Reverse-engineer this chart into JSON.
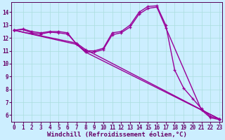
{
  "xlabel": "Windchill (Refroidissement éolien,°C)",
  "bg_color": "#cceeff",
  "line_color": "#990099",
  "grid_color": "#aadddd",
  "axis_color": "#550055",
  "xlim": [
    -0.3,
    23.3
  ],
  "ylim": [
    5.5,
    14.8
  ],
  "xticks": [
    0,
    1,
    2,
    3,
    4,
    5,
    6,
    7,
    8,
    9,
    10,
    11,
    12,
    13,
    14,
    15,
    16,
    17,
    18,
    19,
    20,
    21,
    22,
    23
  ],
  "yticks": [
    6,
    7,
    8,
    9,
    10,
    11,
    12,
    13,
    14
  ],
  "series": [
    {
      "x": [
        0,
        1,
        2,
        3,
        4,
        5,
        6,
        7,
        8,
        9,
        10,
        11,
        12,
        13,
        14,
        15,
        16,
        17,
        18,
        19,
        20,
        21,
        22,
        23
      ],
      "y": [
        12.6,
        12.7,
        12.5,
        12.4,
        12.5,
        12.5,
        12.4,
        11.5,
        11.0,
        11.0,
        11.2,
        12.4,
        12.5,
        13.0,
        14.0,
        14.45,
        14.5,
        13.0,
        9.5,
        8.1,
        7.3,
        6.5,
        5.9,
        5.7
      ]
    },
    {
      "x": [
        0,
        1,
        2,
        3,
        4,
        5,
        6,
        7,
        8,
        9,
        10,
        11,
        12,
        13,
        14,
        15,
        16,
        17,
        21,
        22,
        23
      ],
      "y": [
        12.6,
        12.65,
        12.4,
        12.3,
        12.45,
        12.4,
        12.3,
        11.55,
        10.9,
        10.9,
        11.1,
        12.25,
        12.4,
        12.85,
        13.85,
        14.3,
        14.4,
        12.8,
        6.4,
        5.8,
        5.65
      ]
    },
    {
      "x": [
        0,
        7,
        8,
        23
      ],
      "y": [
        12.6,
        11.5,
        10.9,
        5.7
      ]
    },
    {
      "x": [
        0,
        7,
        8,
        23
      ],
      "y": [
        12.6,
        11.6,
        11.1,
        5.7
      ]
    }
  ],
  "marker": "+",
  "markersize": 3.5,
  "linewidth": 1.0,
  "font_color": "#660066",
  "tick_fontsize": 5.5,
  "label_fontsize": 6.5
}
